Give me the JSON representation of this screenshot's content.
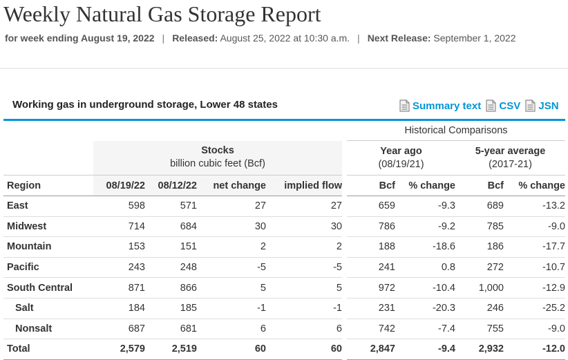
{
  "page": {
    "title": "Weekly Natural Gas Storage Report",
    "week_label": "for week ending August 19, 2022",
    "released_label": "Released:",
    "released_value": "August 25, 2022 at 10:30 a.m.",
    "next_label": "Next Release:",
    "next_value": "September 1, 2022",
    "separator": "|"
  },
  "section": {
    "title": "Working gas in underground storage, Lower 48 states",
    "links": [
      {
        "label": "Summary text",
        "icon": "document-icon"
      },
      {
        "label": "CSV",
        "icon": "document-icon"
      },
      {
        "label": "JSN",
        "icon": "document-icon"
      }
    ]
  },
  "colors": {
    "accent": "#0096d6",
    "stocks_bg": "#f5f5f5",
    "text": "#333333"
  },
  "table": {
    "historical_label": "Historical Comparisons",
    "stocks_label": "Stocks",
    "stocks_units": "billion cubic feet (Bcf)",
    "year_ago_label": "Year ago",
    "year_ago_date": "(08/19/21)",
    "five_year_label": "5-year average",
    "five_year_range": "(2017-21)",
    "columns": [
      "Region",
      "08/19/22",
      "08/12/22",
      "net change",
      "implied flow",
      "Bcf",
      "% change",
      "Bcf",
      "% change"
    ],
    "rows": [
      {
        "region": "East",
        "sub": false,
        "cur": "598",
        "prev": "571",
        "net": "27",
        "flow": "27",
        "ya_bcf": "659",
        "ya_pct": "-9.3",
        "fy_bcf": "689",
        "fy_pct": "-13.2"
      },
      {
        "region": "Midwest",
        "sub": false,
        "cur": "714",
        "prev": "684",
        "net": "30",
        "flow": "30",
        "ya_bcf": "786",
        "ya_pct": "-9.2",
        "fy_bcf": "785",
        "fy_pct": "-9.0"
      },
      {
        "region": "Mountain",
        "sub": false,
        "cur": "153",
        "prev": "151",
        "net": "2",
        "flow": "2",
        "ya_bcf": "188",
        "ya_pct": "-18.6",
        "fy_bcf": "186",
        "fy_pct": "-17.7"
      },
      {
        "region": "Pacific",
        "sub": false,
        "cur": "243",
        "prev": "248",
        "net": "-5",
        "flow": "-5",
        "ya_bcf": "241",
        "ya_pct": "0.8",
        "fy_bcf": "272",
        "fy_pct": "-10.7"
      },
      {
        "region": "South Central",
        "sub": false,
        "cur": "871",
        "prev": "866",
        "net": "5",
        "flow": "5",
        "ya_bcf": "972",
        "ya_pct": "-10.4",
        "fy_bcf": "1,000",
        "fy_pct": "-12.9"
      },
      {
        "region": "Salt",
        "sub": true,
        "cur": "184",
        "prev": "185",
        "net": "-1",
        "flow": "-1",
        "ya_bcf": "231",
        "ya_pct": "-20.3",
        "fy_bcf": "246",
        "fy_pct": "-25.2"
      },
      {
        "region": "Nonsalt",
        "sub": true,
        "cur": "687",
        "prev": "681",
        "net": "6",
        "flow": "6",
        "ya_bcf": "742",
        "ya_pct": "-7.4",
        "fy_bcf": "755",
        "fy_pct": "-9.0"
      }
    ],
    "total": {
      "region": "Total",
      "cur": "2,579",
      "prev": "2,519",
      "net": "60",
      "flow": "60",
      "ya_bcf": "2,847",
      "ya_pct": "-9.4",
      "fy_bcf": "2,932",
      "fy_pct": "-12.0"
    }
  }
}
